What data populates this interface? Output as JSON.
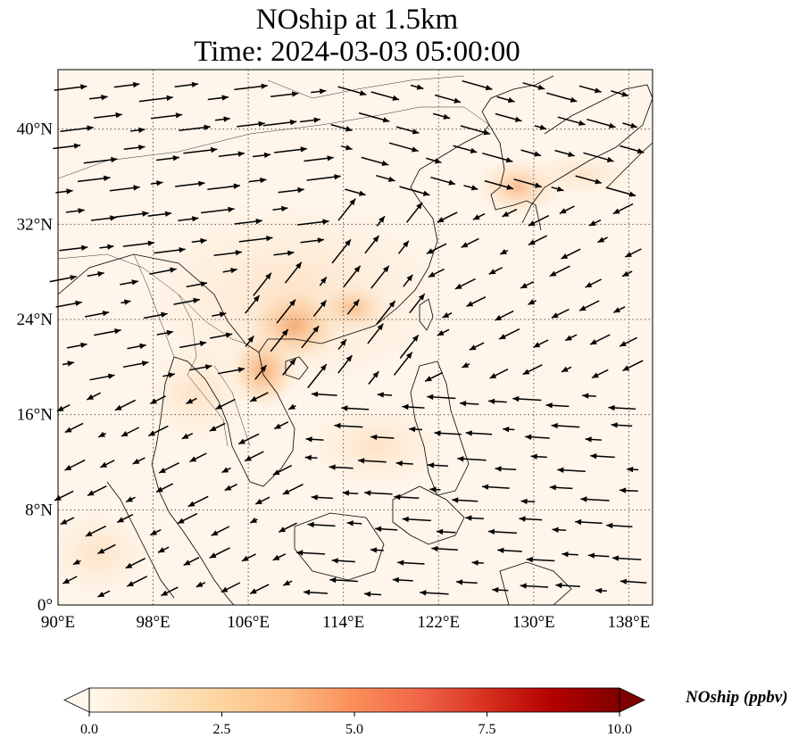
{
  "title": {
    "line1": "NOship at 1.5km",
    "line2": "Time: 2024-03-03 05:00:00"
  },
  "map": {
    "extent": {
      "lon": [
        90,
        140
      ],
      "lat": [
        0,
        45
      ]
    },
    "x_ticks": [
      "90°E",
      "98°E",
      "106°E",
      "114°E",
      "122°E",
      "130°E",
      "138°E"
    ],
    "y_ticks": [
      "0°",
      "8°N",
      "16°N",
      "24°N",
      "32°N",
      "40°N"
    ],
    "gridlines": "dotted",
    "field_variable": "NOship"
  },
  "colorbar": {
    "label": "NOship (ppbv)",
    "ticks": [
      "0.0",
      "2.5",
      "5.0",
      "7.5",
      "10.0"
    ],
    "range": [
      0,
      10
    ],
    "colormap": "OrRd",
    "extend": "both",
    "colors": [
      "#fff7ec",
      "#fee8c8",
      "#fdd49e",
      "#fdbb84",
      "#fc8d59",
      "#ef6548",
      "#d7301f",
      "#b30000",
      "#7f0000"
    ]
  }
}
